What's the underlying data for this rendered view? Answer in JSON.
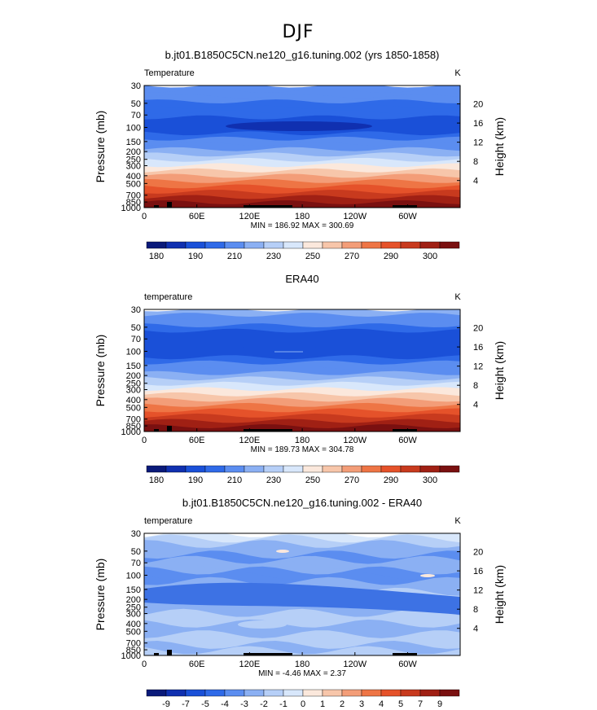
{
  "figure": {
    "season_title": "DJF",
    "colors": {
      "seq": [
        "#0a1a7a",
        "#1030b0",
        "#1a50d8",
        "#2f6ae8",
        "#5b8df0",
        "#8bb0f3",
        "#b6cff7",
        "#d8e7fb",
        "#fbe8dc",
        "#f7c6aa",
        "#f39d78",
        "#ee7545",
        "#e5522a",
        "#c83a1e",
        "#a02014",
        "#7a1010"
      ],
      "diff": [
        "#0a1a7a",
        "#1030b0",
        "#1a50d8",
        "#2f6ae8",
        "#5b8df0",
        "#8bb0f3",
        "#b6cff7",
        "#d8e7fb",
        "#fbe8dc",
        "#f7c6aa",
        "#f39d78",
        "#ee7545",
        "#e5522a",
        "#c83a1e",
        "#a02014",
        "#7a1010"
      ]
    }
  },
  "chart_data": [
    {
      "type": "heatmap",
      "title": "b.jt01.B1850C5CN.ne120_g16.tuning.002 (yrs 1850-1858)",
      "variable_label": "Temperature",
      "units": "K",
      "ylabel": "Pressure (mb)",
      "ylabel2": "Height (km)",
      "y_ticks": [
        "30",
        "50",
        "70",
        "100",
        "150",
        "200",
        "250",
        "300",
        "400",
        "500",
        "700",
        "850",
        "1000"
      ],
      "y2_ticks": [
        "20",
        "16",
        "12",
        "8",
        "4"
      ],
      "x_ticks": [
        "0",
        "60E",
        "120E",
        "180",
        "120W",
        "60W"
      ],
      "stats": "MIN = 186.92  MAX = 300.69",
      "colorbar_labels": [
        "180",
        "190",
        "210",
        "230",
        "250",
        "270",
        "290",
        "300"
      ],
      "profile_levels": [
        4,
        4,
        4,
        3,
        3,
        3,
        2,
        2,
        2,
        3,
        4,
        4,
        5,
        6,
        7,
        8,
        9,
        10,
        11,
        12,
        13,
        14,
        15
      ],
      "min": 186.92,
      "max": 300.69
    },
    {
      "type": "heatmap",
      "title": "ERA40",
      "variable_label": "temperature",
      "units": "K",
      "ylabel": "Pressure (mb)",
      "ylabel2": "Height (km)",
      "y_ticks": [
        "30",
        "50",
        "70",
        "100",
        "150",
        "200",
        "250",
        "300",
        "400",
        "500",
        "700",
        "850",
        "1000"
      ],
      "y2_ticks": [
        "20",
        "16",
        "12",
        "8",
        "4"
      ],
      "x_ticks": [
        "0",
        "60E",
        "120E",
        "180",
        "120W",
        "60W"
      ],
      "stats": "MIN = 189.73  MAX = 304.78",
      "colorbar_labels": [
        "180",
        "190",
        "210",
        "230",
        "250",
        "270",
        "290",
        "300"
      ],
      "profile_levels": [
        5,
        4,
        4,
        3,
        2,
        2,
        2,
        2,
        2,
        3,
        4,
        4,
        5,
        6,
        7,
        8,
        9,
        10,
        11,
        12,
        13,
        14,
        15
      ],
      "min": 189.73,
      "max": 304.78
    },
    {
      "type": "heatmap",
      "title": "b.jt01.B1850C5CN.ne120_g16.tuning.002 - ERA40",
      "variable_label": "temperature",
      "units": "K",
      "ylabel": "Pressure (mb)",
      "ylabel2": "Height (km)",
      "y_ticks": [
        "30",
        "50",
        "70",
        "100",
        "150",
        "200",
        "250",
        "300",
        "400",
        "500",
        "700",
        "850",
        "1000"
      ],
      "y2_ticks": [
        "20",
        "16",
        "12",
        "8",
        "4"
      ],
      "x_ticks": [
        "0",
        "60E",
        "120E",
        "180",
        "120W",
        "60W"
      ],
      "stats": "MIN =  -4.46  MAX =   2.37",
      "colorbar_labels": [
        "-9",
        "-7",
        "-5",
        "-4",
        "-3",
        "-2",
        "-1",
        "0",
        "1",
        "2",
        "3",
        "4",
        "5",
        "7",
        "9"
      ],
      "profile_levels": [
        7,
        6,
        5,
        5,
        4,
        5,
        5,
        4,
        4,
        5,
        5,
        6,
        5,
        5,
        5,
        6,
        6,
        5,
        5,
        6,
        6,
        5,
        6
      ],
      "min": -4.46,
      "max": 2.37
    }
  ]
}
